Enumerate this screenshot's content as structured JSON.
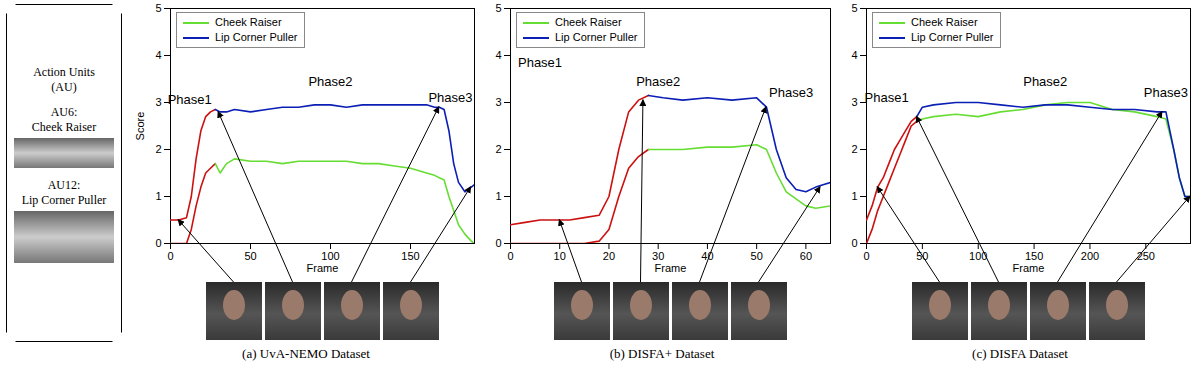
{
  "side_panel": {
    "title": "Action Units (AU)",
    "items": [
      {
        "code": "AU6:",
        "name": "Cheek Raiser"
      },
      {
        "code": "AU12:",
        "name": "Lip Corner Puller"
      }
    ]
  },
  "chart_data": [
    {
      "type": "line",
      "title": "(a) UvA-NEMO Dataset",
      "xlabel": "Frame",
      "ylabel": "Score",
      "xlim": [
        0,
        190
      ],
      "xticks": [
        0,
        50,
        100,
        150
      ],
      "ylim": [
        0,
        5
      ],
      "yticks": [
        0,
        1,
        2,
        3,
        4,
        5
      ],
      "legend": "upper left",
      "x": [
        0,
        5,
        10,
        13,
        16,
        19,
        22,
        25,
        28,
        31,
        35,
        40,
        50,
        60,
        70,
        80,
        90,
        100,
        110,
        120,
        130,
        140,
        150,
        160,
        165,
        168,
        171,
        174,
        177,
        180,
        184,
        188,
        190
      ],
      "series": [
        {
          "name": "Cheek Raiser",
          "color": "#66dd33",
          "values": [
            0,
            0,
            0,
            0.3,
            0.8,
            1.2,
            1.5,
            1.6,
            1.7,
            1.5,
            1.7,
            1.8,
            1.75,
            1.75,
            1.7,
            1.75,
            1.75,
            1.75,
            1.75,
            1.7,
            1.7,
            1.65,
            1.6,
            1.5,
            1.45,
            1.4,
            1.35,
            1.0,
            0.7,
            0.4,
            0.2,
            0.05,
            0
          ]
        },
        {
          "name": "Lip Corner Puller",
          "color": "#0b1fb5",
          "values": [
            0.5,
            0.5,
            0.55,
            1.0,
            1.8,
            2.4,
            2.7,
            2.8,
            2.85,
            2.8,
            2.8,
            2.85,
            2.8,
            2.85,
            2.9,
            2.9,
            2.95,
            2.95,
            2.9,
            2.95,
            2.95,
            2.95,
            2.95,
            2.95,
            2.9,
            2.9,
            2.85,
            2.4,
            1.7,
            1.3,
            1.1,
            1.2,
            1.25
          ]
        }
      ],
      "onset": {
        "xlim": [
          0,
          28
        ],
        "color": "#cc1111"
      },
      "annotations": [
        {
          "text": "Phase1",
          "x": 12,
          "y": 3.05
        },
        {
          "text": "Phase2",
          "x": 100,
          "y": 3.45
        },
        {
          "text": "Phase3",
          "x": 175,
          "y": 3.1
        }
      ],
      "keyframes": [
        5,
        30,
        168,
        188
      ]
    },
    {
      "type": "line",
      "title": "(b) DISFA+ Dataset",
      "xlabel": "Frame",
      "ylabel": null,
      "xlim": [
        0,
        65
      ],
      "xticks": [
        0,
        10,
        20,
        30,
        40,
        50,
        60
      ],
      "ylim": [
        0,
        5
      ],
      "yticks": [
        0,
        1,
        2,
        3,
        4,
        5
      ],
      "legend": "upper left",
      "x": [
        0,
        3,
        6,
        9,
        12,
        15,
        18,
        20,
        22,
        24,
        26,
        28,
        31,
        35,
        40,
        45,
        50,
        52,
        54,
        56,
        58,
        60,
        62,
        65
      ],
      "series": [
        {
          "name": "Cheek Raiser",
          "color": "#66dd33",
          "values": [
            0,
            0,
            0,
            0,
            0,
            0,
            0.05,
            0.3,
            1.0,
            1.6,
            1.85,
            2.0,
            2.0,
            2.0,
            2.05,
            2.05,
            2.1,
            2.0,
            1.5,
            1.1,
            0.95,
            0.8,
            0.75,
            0.8
          ]
        },
        {
          "name": "Lip Corner Puller",
          "color": "#0b1fb5",
          "values": [
            0.4,
            0.45,
            0.5,
            0.5,
            0.5,
            0.55,
            0.6,
            1.0,
            2.0,
            2.8,
            3.05,
            3.15,
            3.1,
            3.05,
            3.1,
            3.05,
            3.1,
            2.9,
            2.0,
            1.4,
            1.15,
            1.1,
            1.2,
            1.3
          ]
        }
      ],
      "onset": {
        "xlim": [
          0,
          28
        ],
        "color": "#cc1111"
      },
      "annotations": [
        {
          "text": "Phase1",
          "x": 6,
          "y": 3.85
        },
        {
          "text": "Phase2",
          "x": 30,
          "y": 3.45
        },
        {
          "text": "Phase3",
          "x": 57,
          "y": 3.2
        }
      ],
      "keyframes": [
        10,
        27,
        52,
        63
      ]
    },
    {
      "type": "line",
      "title": "(c) DISFA Dataset",
      "xlabel": "Frame",
      "ylabel": null,
      "xlim": [
        0,
        290
      ],
      "xticks": [
        0,
        50,
        100,
        150,
        200,
        250
      ],
      "ylim": [
        0,
        5
      ],
      "yticks": [
        0,
        1,
        2,
        3,
        4,
        5
      ],
      "legend": "upper left",
      "x": [
        0,
        5,
        10,
        15,
        20,
        25,
        30,
        35,
        40,
        45,
        50,
        60,
        80,
        100,
        120,
        140,
        160,
        180,
        200,
        220,
        240,
        260,
        268,
        275,
        280,
        285,
        290
      ],
      "series": [
        {
          "name": "Cheek Raiser",
          "color": "#66dd33",
          "values": [
            0.0,
            0.3,
            0.7,
            1.0,
            1.3,
            1.6,
            1.9,
            2.2,
            2.5,
            2.6,
            2.65,
            2.7,
            2.75,
            2.7,
            2.8,
            2.85,
            2.95,
            3.0,
            3.0,
            2.85,
            2.8,
            2.7,
            2.65,
            2.0,
            1.4,
            1.0,
            1.0
          ]
        },
        {
          "name": "Lip Corner Puller",
          "color": "#0b1fb5",
          "values": [
            0.5,
            0.8,
            1.2,
            1.4,
            1.7,
            2.0,
            2.2,
            2.4,
            2.6,
            2.7,
            2.9,
            2.95,
            3.0,
            3.0,
            2.95,
            2.9,
            2.95,
            2.95,
            2.9,
            2.85,
            2.85,
            2.8,
            2.8,
            2.0,
            1.4,
            1.0,
            1.0
          ]
        }
      ],
      "onset": {
        "xlim": [
          0,
          45
        ],
        "color": "#cc1111"
      },
      "annotations": [
        {
          "text": "Phase1",
          "x": 18,
          "y": 3.1
        },
        {
          "text": "Phase2",
          "x": 160,
          "y": 3.45
        },
        {
          "text": "Phase3",
          "x": 268,
          "y": 3.2
        }
      ],
      "keyframes": [
        10,
        45,
        265,
        290
      ]
    }
  ]
}
